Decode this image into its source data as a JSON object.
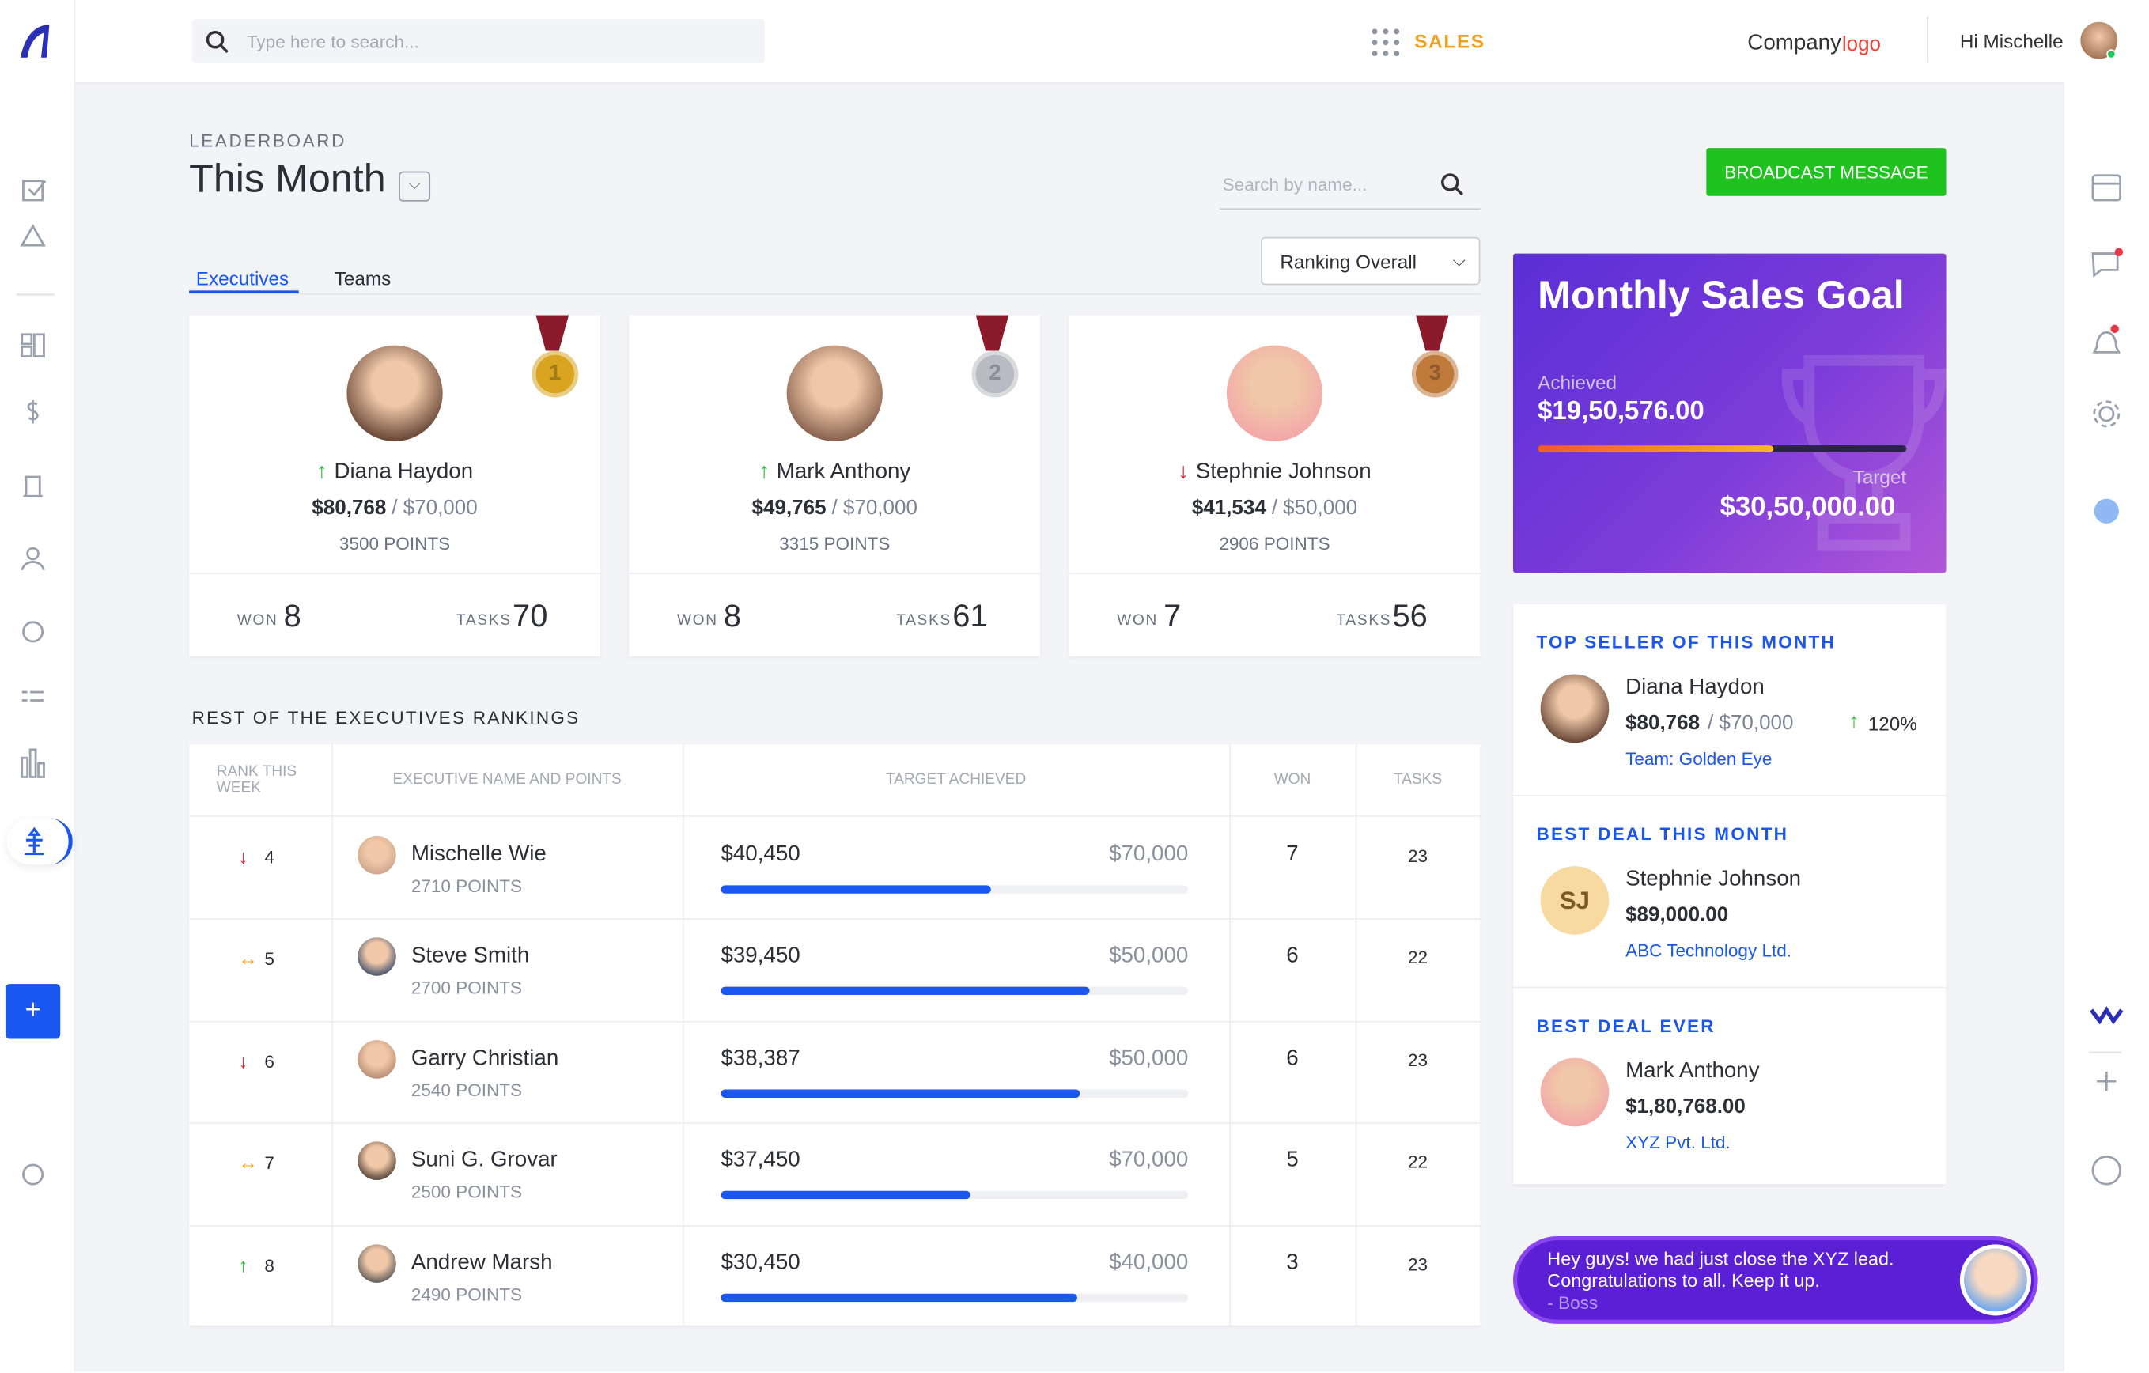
{
  "header": {
    "search_placeholder": "Type here to search...",
    "module": "SALES",
    "logo_text": "Company",
    "logo_accent": "logo",
    "greeting": "Hi Mischelle"
  },
  "page": {
    "label": "LEADERBOARD",
    "title": "This Month",
    "search_placeholder": "Search by name...",
    "broadcast": "BROADCAST MESSAGE",
    "tabs": [
      "Executives",
      "Teams"
    ],
    "sort": "Ranking Overall"
  },
  "podium": [
    {
      "medal": "1",
      "medal_color": "#d9a520",
      "trend": "up",
      "name": "Diana Haydon",
      "achieved": "$80,768",
      "target": "/ $70,000",
      "points": "3500 POINTS",
      "won_label": "WON",
      "won": "8",
      "tasks_label": "TASKS",
      "tasks": "70"
    },
    {
      "medal": "2",
      "medal_color": "#b8bcc2",
      "trend": "up",
      "name": "Mark Anthony",
      "achieved": "$49,765",
      "target": "/ $70,000",
      "points": "3315 POINTS",
      "won_label": "WON",
      "won": "8",
      "tasks_label": "TASKS",
      "tasks": "61"
    },
    {
      "medal": "3",
      "medal_color": "#c07a3c",
      "trend": "down",
      "name": "Stephnie Johnson",
      "achieved": "$41,534",
      "target": "/ $50,000",
      "points": "2906 POINTS",
      "won_label": "WON",
      "won": "7",
      "tasks_label": "TASKS",
      "tasks": "56"
    }
  ],
  "rankings": {
    "title": "REST OF THE EXECUTIVES RANKINGS",
    "columns": [
      "RANK THIS WEEK",
      "EXECUTIVE NAME AND POINTS",
      "TARGET ACHIEVED",
      "WON",
      "TASKS"
    ],
    "rows": [
      {
        "trend": "down",
        "rank": "4",
        "name": "Mischelle Wie",
        "points": "2710 POINTS",
        "achieved": "$40,450",
        "target": "$70,000",
        "won": "7",
        "tasks": "23"
      },
      {
        "trend": "same",
        "rank": "5",
        "name": "Steve Smith",
        "points": "2700 POINTS",
        "achieved": "$39,450",
        "target": "$50,000",
        "won": "6",
        "tasks": "22"
      },
      {
        "trend": "down",
        "rank": "6",
        "name": "Garry Christian",
        "points": "2540 POINTS",
        "achieved": "$38,387",
        "target": "$50,000",
        "won": "6",
        "tasks": "23"
      },
      {
        "trend": "same",
        "rank": "7",
        "name": "Suni G. Grovar",
        "points": "2500 POINTS",
        "achieved": "$37,450",
        "target": "$70,000",
        "won": "5",
        "tasks": "22"
      },
      {
        "trend": "up",
        "rank": "8",
        "name": "Andrew Marsh",
        "points": "2490 POINTS",
        "achieved": "$30,450",
        "target": "$40,000",
        "won": "3",
        "tasks": "23"
      }
    ]
  },
  "goal": {
    "title": "Monthly Sales Goal",
    "achieved_label": "Achieved",
    "achieved": "$19,50,576.00",
    "target_label": "Target",
    "target": "$30,50,000.00"
  },
  "highlights": [
    {
      "title": "TOP SELLER OF THIS MONTH",
      "name": "Diana Haydon",
      "amount": "$80,768",
      "target": "/ $70,000",
      "growth": "120%",
      "link": "Team: Golden Eye"
    },
    {
      "title": "BEST DEAL THIS MONTH",
      "initials": "SJ",
      "name": "Stephnie Johnson",
      "amount": "$89,000.00",
      "link": "ABC Technology Ltd."
    },
    {
      "title": "BEST DEAL EVER",
      "name": "Mark Anthony",
      "amount": "$1,80,768.00",
      "link": "XYZ Pvt. Ltd."
    }
  ],
  "chat": {
    "message": "Hey guys! we had just close the XYZ lead. Congratulations to all. Keep it up.",
    "author": "- Boss"
  }
}
